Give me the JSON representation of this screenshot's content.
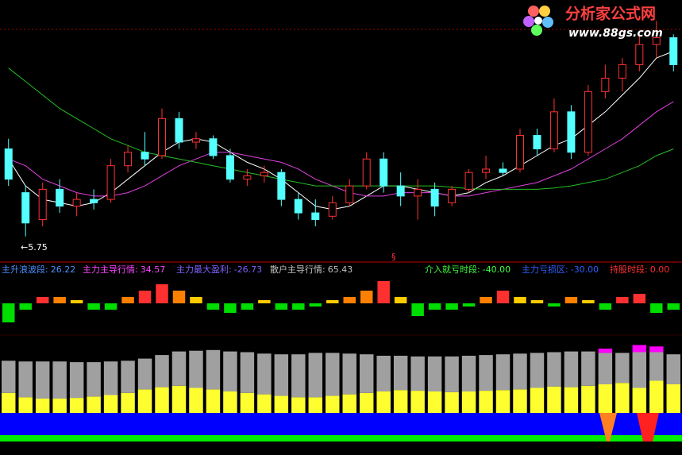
{
  "watermark": {
    "title": "分析家公式网",
    "url": "www.88gs.com"
  },
  "chart_data": [
    {
      "type": "candlestick",
      "open": [
        7.05,
        6.4,
        6.0,
        6.45,
        6.2,
        6.3,
        6.3,
        6.8,
        7.0,
        6.95,
        7.5,
        7.15,
        7.2,
        6.95,
        6.6,
        6.65,
        6.7,
        6.3,
        6.1,
        6.05,
        6.25,
        6.5,
        6.9,
        6.5,
        6.35,
        6.45,
        6.25,
        6.45,
        6.7,
        6.75,
        6.75,
        7.25,
        7.05,
        7.6,
        7.0,
        7.9,
        8.1,
        8.3,
        8.6,
        8.7
      ],
      "high": [
        7.2,
        6.5,
        6.55,
        6.6,
        6.4,
        6.45,
        6.9,
        7.1,
        7.3,
        7.65,
        7.6,
        7.3,
        7.25,
        7.05,
        6.75,
        6.8,
        6.75,
        6.4,
        6.3,
        6.35,
        6.6,
        7.0,
        7.0,
        6.7,
        6.6,
        6.55,
        6.5,
        6.75,
        6.95,
        6.85,
        7.35,
        7.35,
        7.8,
        7.7,
        8.0,
        8.3,
        8.4,
        8.75,
        8.95,
        8.75
      ],
      "low": [
        6.5,
        5.75,
        5.9,
        6.1,
        6.05,
        6.15,
        6.25,
        6.7,
        6.8,
        6.9,
        7.05,
        7.05,
        6.9,
        6.55,
        6.5,
        6.55,
        6.2,
        6.0,
        5.9,
        6.0,
        6.2,
        6.45,
        6.4,
        6.2,
        6.0,
        6.05,
        6.2,
        6.4,
        6.6,
        6.65,
        6.7,
        6.95,
        7.0,
        6.9,
        6.95,
        7.8,
        7.9,
        8.2,
        8.4,
        8.2
      ],
      "close": [
        6.6,
        5.95,
        6.45,
        6.2,
        6.3,
        6.25,
        6.8,
        7.0,
        6.9,
        7.5,
        7.15,
        7.2,
        6.95,
        6.6,
        6.65,
        6.7,
        6.3,
        6.1,
        6.0,
        6.25,
        6.5,
        6.9,
        6.5,
        6.35,
        6.45,
        6.2,
        6.45,
        6.7,
        6.75,
        6.7,
        7.25,
        7.05,
        7.6,
        7.0,
        7.9,
        8.1,
        8.3,
        8.6,
        8.7,
        8.3
      ],
      "up_color": "#ff3232",
      "down_color": "#54ffff",
      "ylim": [
        5.37,
        9.26
      ],
      "series": [
        {
          "color": "#ffffff",
          "values": [
            6.9,
            6.5,
            6.3,
            6.25,
            6.2,
            6.25,
            6.4,
            6.6,
            6.8,
            7.0,
            7.15,
            7.2,
            7.15,
            7.0,
            6.85,
            6.75,
            6.6,
            6.4,
            6.2,
            6.15,
            6.2,
            6.35,
            6.5,
            6.5,
            6.45,
            6.4,
            6.35,
            6.4,
            6.55,
            6.65,
            6.8,
            6.95,
            7.1,
            7.2,
            7.4,
            7.6,
            7.85,
            8.1,
            8.4,
            8.5
          ]
        },
        {
          "color": "#e040e0",
          "values": [
            6.9,
            6.8,
            6.6,
            6.5,
            6.4,
            6.35,
            6.35,
            6.4,
            6.5,
            6.65,
            6.8,
            6.9,
            7.0,
            7.0,
            6.95,
            6.9,
            6.85,
            6.75,
            6.6,
            6.5,
            6.4,
            6.35,
            6.35,
            6.4,
            6.4,
            6.4,
            6.35,
            6.35,
            6.4,
            6.45,
            6.5,
            6.55,
            6.65,
            6.75,
            6.9,
            7.05,
            7.2,
            7.4,
            7.6,
            7.75
          ]
        },
        {
          "color": "#22c022",
          "values": [
            8.25,
            8.05,
            7.85,
            7.65,
            7.5,
            7.35,
            7.2,
            7.1,
            7.0,
            6.95,
            6.9,
            6.85,
            6.8,
            6.75,
            6.7,
            6.65,
            6.6,
            6.55,
            6.5,
            6.5,
            6.5,
            6.5,
            6.5,
            6.5,
            6.5,
            6.5,
            6.48,
            6.46,
            6.45,
            6.45,
            6.45,
            6.45,
            6.47,
            6.5,
            6.55,
            6.6,
            6.7,
            6.8,
            6.95,
            7.05
          ]
        }
      ],
      "annotations": [
        {
          "value": 5.75,
          "label": "←5.75"
        }
      ]
    },
    {
      "type": "bar",
      "values": [
        -3,
        -1,
        1,
        1,
        0.5,
        -1,
        -1,
        1,
        2,
        3,
        2,
        1,
        -1,
        -1.5,
        -1,
        0.5,
        -1,
        -1,
        -0.5,
        0.5,
        1,
        2,
        3.5,
        1,
        -2,
        -1,
        -1,
        -0.5,
        1,
        2,
        1,
        0.5,
        -0.5,
        1,
        0.5,
        -1,
        1,
        1.5,
        -1.5,
        -1
      ],
      "colors": [
        "#00dd00",
        "#00dd00",
        "#ff3030",
        "#ff8000",
        "#ffcc00",
        "#00dd00",
        "#00dd00",
        "#ff8000",
        "#ff3030",
        "#ff3030",
        "#ff8000",
        "#ffcc00",
        "#00dd00",
        "#00dd00",
        "#00dd00",
        "#ffcc00",
        "#00dd00",
        "#00dd00",
        "#00dd00",
        "#ffcc00",
        "#ff8000",
        "#ff8000",
        "#ff3030",
        "#ffcc00",
        "#00dd00",
        "#00dd00",
        "#00dd00",
        "#00dd00",
        "#ff8000",
        "#ff3030",
        "#ffcc00",
        "#ffcc00",
        "#00dd00",
        "#ff8000",
        "#ffcc00",
        "#00dd00",
        "#ff3030",
        "#ff3030",
        "#00dd00",
        "#00dd00"
      ],
      "ylim": [
        -4,
        4
      ],
      "marker": "§",
      "legend": [
        {
          "name": "主升浪波段:",
          "value": 26.22,
          "color": "#4a90ff"
        },
        {
          "name": "主力主导行情:",
          "value": 34.57,
          "color": "#ff44ff"
        },
        {
          "name": "主力最大盈利:",
          "value": -26.73,
          "color": "#8060ff"
        },
        {
          "name": "散户主导行情:",
          "value": 65.43,
          "color": "#c0c0c0"
        },
        {
          "name": "介入就亏时段:",
          "value": {
            "value": -40,
            "label": "-40.00"
          },
          "color": "#40ff40"
        },
        {
          "name": "主力亏损区:",
          "value": {
            "value": -30,
            "label": "-30.00"
          },
          "color": "#3060ff"
        },
        {
          "name": "持股时段:",
          "value": {
            "value": 0,
            "label": "0.00"
          },
          "color": "#ff3030"
        }
      ]
    },
    {
      "type": "stacked_bar",
      "ylim": [
        0,
        100
      ],
      "series": [
        {
          "color": "#ffff30",
          "values": [
            28,
            22,
            20,
            20,
            21,
            23,
            25,
            28,
            33,
            36,
            38,
            35,
            33,
            30,
            28,
            26,
            24,
            22,
            22,
            24,
            26,
            28,
            30,
            32,
            31,
            30,
            29,
            30,
            31,
            32,
            33,
            35,
            37,
            36,
            38,
            40,
            42,
            35,
            45,
            40
          ]
        },
        {
          "color": "#a0a0a0",
          "values": [
            45,
            50,
            52,
            52,
            50,
            48,
            47,
            45,
            43,
            45,
            48,
            52,
            55,
            56,
            57,
            57,
            58,
            60,
            62,
            60,
            57,
            54,
            50,
            48,
            48,
            49,
            50,
            50,
            50,
            50,
            50,
            49,
            48,
            50,
            48,
            44,
            42,
            50,
            40,
            42
          ]
        },
        {
          "color": "#ff00ff",
          "values": [
            0,
            0,
            0,
            0,
            0,
            0,
            0,
            0,
            0,
            0,
            0,
            0,
            0,
            0,
            0,
            0,
            0,
            0,
            0,
            0,
            0,
            0,
            0,
            0,
            0,
            0,
            0,
            0,
            0,
            0,
            0,
            0,
            0,
            0,
            0,
            6,
            0,
            10,
            8,
            0
          ]
        }
      ]
    }
  ]
}
